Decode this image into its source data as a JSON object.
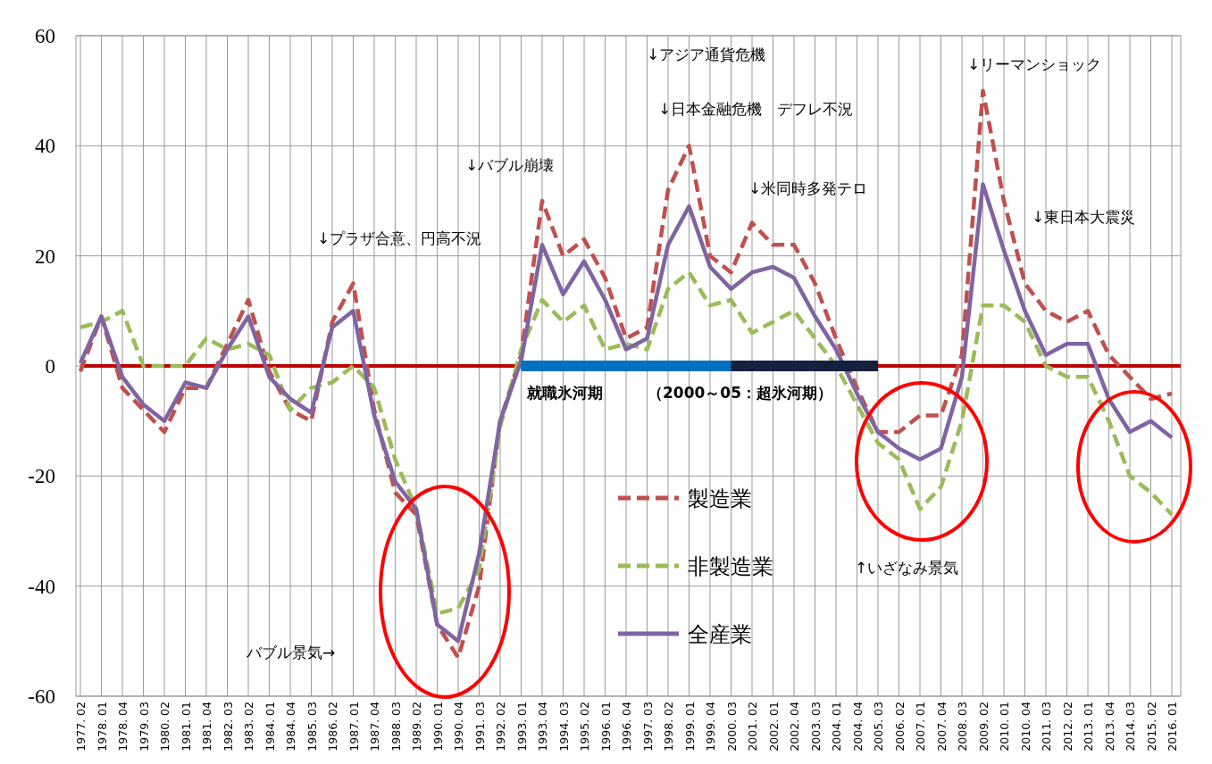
{
  "chart_data": {
    "type": "line",
    "categories": [
      "1977. 02",
      "1978. 01",
      "1978. 04",
      "1979. 03",
      "1980. 02",
      "1981. 01",
      "1981. 04",
      "1982. 03",
      "1983. 02",
      "1984. 01",
      "1984. 04",
      "1985. 03",
      "1986. 02",
      "1987. 01",
      "1987. 04",
      "1988. 03",
      "1989. 02",
      "1990. 01",
      "1990. 04",
      "1991. 03",
      "1992. 02",
      "1993. 01",
      "1993. 04",
      "1994. 03",
      "1995. 02",
      "1996. 01",
      "1996. 04",
      "1997. 03",
      "1998. 02",
      "1999. 01",
      "1999. 04",
      "2000. 03",
      "2001. 02",
      "2002. 01",
      "2002. 04",
      "2003. 03",
      "2004. 01",
      "2004. 04",
      "2005. 03",
      "2006. 02",
      "2007. 01",
      "2007. 04",
      "2008. 03",
      "2009. 02",
      "2010. 01",
      "2010. 04",
      "2011. 03",
      "2012. 02",
      "2013. 01",
      "2013. 04",
      "2014. 03",
      "2015. 02",
      "2016. 01"
    ],
    "series": [
      {
        "name": "製造業",
        "color": "#c0504d",
        "line_style": "dashed",
        "values": [
          -1,
          9,
          -4,
          -8,
          -12,
          -4,
          -4,
          4,
          12,
          -1,
          -8,
          -10,
          8,
          15,
          -8,
          -23,
          -27,
          -47,
          -53,
          -40,
          -10,
          2,
          30,
          20,
          23,
          16,
          5,
          7,
          32,
          40,
          20,
          17,
          26,
          22,
          22,
          15,
          5,
          -4,
          -12,
          -12,
          -9,
          -9,
          2,
          50,
          30,
          15,
          10,
          8,
          10,
          2,
          -2,
          -6,
          -5
        ]
      },
      {
        "name": "非製造業",
        "color": "#9bbb59",
        "line_style": "dashed",
        "values": [
          7,
          8,
          10,
          0,
          0,
          0,
          5,
          3,
          4,
          2,
          -8,
          -4,
          -3,
          0,
          -4,
          -17,
          -26,
          -45,
          -44,
          -37,
          -11,
          3,
          12,
          8,
          11,
          3,
          4,
          3,
          14,
          17,
          11,
          12,
          6,
          8,
          10,
          5,
          0,
          -7,
          -14,
          -17,
          -26,
          -22,
          -10,
          11,
          11,
          8,
          0,
          -2,
          -2,
          -10,
          -20,
          -23,
          -27
        ]
      },
      {
        "name": "全産業",
        "color": "#8064a2",
        "line_style": "solid",
        "values": [
          0.5,
          9,
          -2,
          -7,
          -10,
          -3,
          -4,
          3,
          9,
          -2,
          -6,
          -8.5,
          7,
          10,
          -9,
          -21,
          -26,
          -47,
          -50,
          -34,
          -10,
          1,
          22,
          13,
          19,
          12,
          3,
          5,
          22,
          29,
          18,
          14,
          17,
          18,
          16,
          9,
          3,
          -5,
          -12,
          -15,
          -17,
          -15,
          -2,
          33,
          21,
          10,
          2,
          4,
          4,
          -6,
          -12,
          -10,
          -13
        ]
      },
      {
        "color": "#0070c0",
        "line_style": "solid",
        "values": [
          null,
          null,
          null,
          null,
          null,
          null,
          null,
          null,
          null,
          null,
          null,
          null,
          null,
          null,
          null,
          null,
          null,
          null,
          null,
          null,
          null,
          0,
          0,
          0,
          0,
          0,
          0,
          0,
          0,
          0,
          0,
          0,
          null,
          null,
          null,
          null,
          null,
          null,
          null,
          null,
          null,
          null,
          null,
          null,
          null,
          null,
          null,
          null,
          null,
          null,
          null,
          null,
          null
        ]
      },
      {
        "color": "#14213d",
        "line_style": "solid",
        "values": [
          null,
          null,
          null,
          null,
          null,
          null,
          null,
          null,
          null,
          null,
          null,
          null,
          null,
          null,
          null,
          null,
          null,
          null,
          null,
          null,
          null,
          null,
          null,
          null,
          null,
          null,
          null,
          null,
          null,
          null,
          null,
          0,
          0,
          0,
          0,
          0,
          0,
          0,
          0,
          null,
          null,
          null,
          null,
          null,
          null,
          null,
          null,
          null,
          null,
          null,
          null,
          null,
          null
        ]
      }
    ],
    "ylim": [
      -60,
      60
    ],
    "yticks": [
      -60,
      -40,
      -20,
      0,
      20,
      40,
      60
    ],
    "grid": true,
    "legend": "bottom",
    "ref_lines": [
      {
        "axis": "y",
        "value": 0,
        "color": "#c00000"
      }
    ],
    "annotations": [
      "↓プラザ合意、円高不況",
      "↓バブル崩壊",
      "↓アジア通貨危機",
      "↓日本金融危機　デフレ不況",
      "↓米同時多発テロ",
      "↓リーマンショック",
      "↓東日本大震災",
      "バブル景気→",
      "↑いざなみ景気",
      "就職氷河期",
      "（2000～05：超氷河期）"
    ]
  }
}
